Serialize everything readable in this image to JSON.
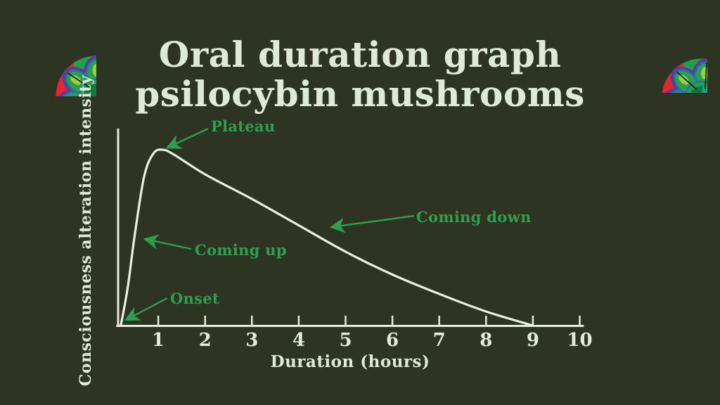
{
  "page": {
    "title_line1": "Oral duration graph",
    "title_line2": "psilocybin mushrooms"
  },
  "icons": {
    "top_left": "psychedelic-flower-mandala",
    "top_right": "psychedelic-flower-mandala"
  },
  "colors": {
    "background": "#2d3421",
    "text_cream": "#dfe9d8",
    "curve_cream": "#e8f0df",
    "annotation_green": "#2f9e52"
  },
  "chart_data": {
    "type": "line",
    "title": "Oral duration graph psilocybin mushrooms",
    "xlabel": "Duration (hours)",
    "ylabel": "Consciousness alteration intensity",
    "x_ticks": [
      "1",
      "2",
      "3",
      "4",
      "5",
      "6",
      "7",
      "8",
      "9",
      "10"
    ],
    "xlim": [
      0,
      10
    ],
    "ylim": [
      0,
      1.05
    ],
    "grid": false,
    "legend": "none",
    "series": [
      {
        "name": "Consciousness alteration intensity",
        "x": [
          0.2,
          0.35,
          0.5,
          0.7,
          0.9,
          1.1,
          1.35,
          2,
          3,
          4,
          5,
          6,
          7,
          8,
          9
        ],
        "y": [
          0,
          0.22,
          0.52,
          0.85,
          0.98,
          1.0,
          0.97,
          0.86,
          0.72,
          0.57,
          0.42,
          0.29,
          0.18,
          0.08,
          0
        ]
      }
    ],
    "annotations": [
      {
        "label": "Onset",
        "points_to_x": 0.25,
        "points_to_y": 0.02
      },
      {
        "label": "Coming up",
        "points_to_x": 0.55,
        "points_to_y": 0.5
      },
      {
        "label": "Plateau",
        "points_to_x": 1.05,
        "points_to_y": 1.0
      },
      {
        "label": "Coming down",
        "points_to_x": 4.6,
        "points_to_y": 0.56
      }
    ]
  }
}
